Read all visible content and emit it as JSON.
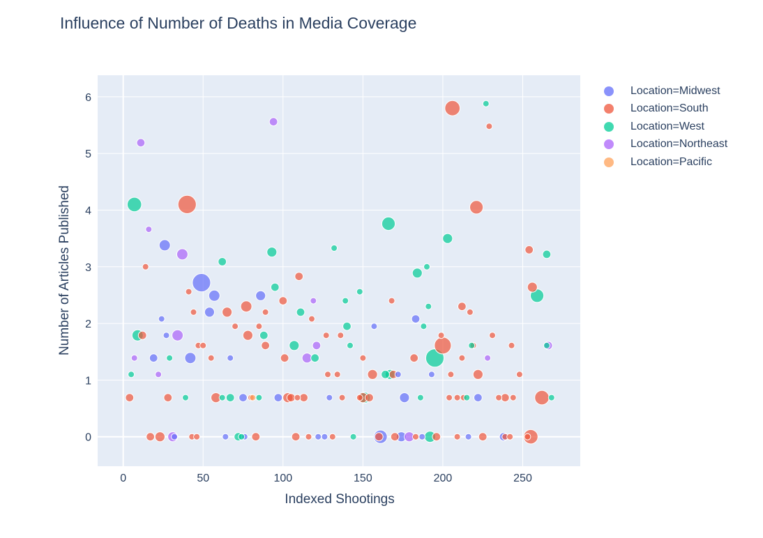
{
  "chart_data": {
    "type": "scatter",
    "title": "Influence of Number of Deaths in Media Coverage",
    "xlabel": "Indexed Shootings",
    "ylabel": "Number of Articles Published",
    "xlim": [
      -16,
      286
    ],
    "ylim": [
      -0.52,
      6.38
    ],
    "xticks": [
      0,
      50,
      100,
      150,
      200,
      250
    ],
    "yticks": [
      0,
      1,
      2,
      3,
      4,
      5,
      6
    ],
    "grid": true,
    "legend_position": "top-right",
    "note": "Marker size encodes a per-shooting count (bubble chart); points estimated visually.",
    "series": [
      {
        "name": "Location=Midwest",
        "color": "#636efa",
        "points": [
          {
            "x": 26,
            "y": 3.38,
            "s": 4
          },
          {
            "x": 49,
            "y": 2.72,
            "s": 12
          },
          {
            "x": 57,
            "y": 2.49,
            "s": 4
          },
          {
            "x": 86,
            "y": 2.49,
            "s": 3
          },
          {
            "x": 54,
            "y": 2.2,
            "s": 3
          },
          {
            "x": 24,
            "y": 2.08,
            "s": 1
          },
          {
            "x": 42,
            "y": 1.39,
            "s": 4
          },
          {
            "x": 19,
            "y": 1.39,
            "s": 2
          },
          {
            "x": 27,
            "y": 1.79,
            "s": 1
          },
          {
            "x": 67,
            "y": 1.39,
            "s": 1
          },
          {
            "x": 157,
            "y": 1.95,
            "s": 1
          },
          {
            "x": 183,
            "y": 2.08,
            "s": 2
          },
          {
            "x": 172,
            "y": 1.1,
            "s": 1
          },
          {
            "x": 193,
            "y": 1.1,
            "s": 1
          },
          {
            "x": 75,
            "y": 0.69,
            "s": 2
          },
          {
            "x": 97,
            "y": 0.69,
            "s": 2
          },
          {
            "x": 176,
            "y": 0.69,
            "s": 3
          },
          {
            "x": 129,
            "y": 0.69,
            "s": 1
          },
          {
            "x": 222,
            "y": 0.69,
            "s": 2
          },
          {
            "x": 161,
            "y": 0,
            "s": 6
          },
          {
            "x": 174,
            "y": 0,
            "s": 3
          },
          {
            "x": 187,
            "y": 0,
            "s": 1
          },
          {
            "x": 122,
            "y": 0,
            "s": 1
          },
          {
            "x": 126,
            "y": 0,
            "s": 1
          },
          {
            "x": 64,
            "y": 0,
            "s": 1
          },
          {
            "x": 76,
            "y": 0,
            "s": 1
          },
          {
            "x": 216,
            "y": 0,
            "s": 1
          },
          {
            "x": 238,
            "y": 0,
            "s": 2
          },
          {
            "x": 32,
            "y": 0,
            "s": 1
          }
        ]
      },
      {
        "name": "Location=South",
        "color": "#ef553b",
        "points": [
          {
            "x": 206,
            "y": 5.8,
            "s": 8
          },
          {
            "x": 229,
            "y": 5.48,
            "s": 1
          },
          {
            "x": 40,
            "y": 4.1,
            "s": 12
          },
          {
            "x": 221,
            "y": 4.05,
            "s": 6
          },
          {
            "x": 14,
            "y": 3.0,
            "s": 1
          },
          {
            "x": 254,
            "y": 3.3,
            "s": 2
          },
          {
            "x": 256,
            "y": 2.64,
            "s": 3
          },
          {
            "x": 110,
            "y": 2.83,
            "s": 2
          },
          {
            "x": 41,
            "y": 2.56,
            "s": 1
          },
          {
            "x": 100,
            "y": 2.4,
            "s": 2
          },
          {
            "x": 168,
            "y": 2.4,
            "s": 1
          },
          {
            "x": 77,
            "y": 2.3,
            "s": 4
          },
          {
            "x": 65,
            "y": 2.2,
            "s": 3
          },
          {
            "x": 44,
            "y": 2.2,
            "s": 1
          },
          {
            "x": 89,
            "y": 2.2,
            "s": 1
          },
          {
            "x": 118,
            "y": 2.08,
            "s": 1
          },
          {
            "x": 212,
            "y": 2.3,
            "s": 2
          },
          {
            "x": 217,
            "y": 2.2,
            "s": 1
          },
          {
            "x": 70,
            "y": 1.95,
            "s": 1
          },
          {
            "x": 85,
            "y": 1.95,
            "s": 1
          },
          {
            "x": 12,
            "y": 1.79,
            "s": 2
          },
          {
            "x": 78,
            "y": 1.79,
            "s": 3
          },
          {
            "x": 127,
            "y": 1.79,
            "s": 1
          },
          {
            "x": 136,
            "y": 1.79,
            "s": 1
          },
          {
            "x": 199,
            "y": 1.79,
            "s": 1
          },
          {
            "x": 231,
            "y": 1.79,
            "s": 1
          },
          {
            "x": 200,
            "y": 1.61,
            "s": 10
          },
          {
            "x": 47,
            "y": 1.61,
            "s": 1
          },
          {
            "x": 50,
            "y": 1.61,
            "s": 1
          },
          {
            "x": 89,
            "y": 1.61,
            "s": 2
          },
          {
            "x": 219,
            "y": 1.61,
            "s": 1
          },
          {
            "x": 243,
            "y": 1.61,
            "s": 1
          },
          {
            "x": 101,
            "y": 1.39,
            "s": 2
          },
          {
            "x": 55,
            "y": 1.39,
            "s": 1
          },
          {
            "x": 150,
            "y": 1.39,
            "s": 1
          },
          {
            "x": 182,
            "y": 1.39,
            "s": 2
          },
          {
            "x": 212,
            "y": 1.39,
            "s": 1
          },
          {
            "x": 128,
            "y": 1.1,
            "s": 1
          },
          {
            "x": 134,
            "y": 1.1,
            "s": 1
          },
          {
            "x": 156,
            "y": 1.1,
            "s": 3
          },
          {
            "x": 169,
            "y": 1.1,
            "s": 2
          },
          {
            "x": 205,
            "y": 1.1,
            "s": 1
          },
          {
            "x": 222,
            "y": 1.1,
            "s": 3
          },
          {
            "x": 248,
            "y": 1.1,
            "s": 1
          },
          {
            "x": 4,
            "y": 0.69,
            "s": 2
          },
          {
            "x": 28,
            "y": 0.69,
            "s": 2
          },
          {
            "x": 58,
            "y": 0.69,
            "s": 3
          },
          {
            "x": 80,
            "y": 0.69,
            "s": 1
          },
          {
            "x": 103,
            "y": 0.69,
            "s": 3
          },
          {
            "x": 105,
            "y": 0.69,
            "s": 2
          },
          {
            "x": 109,
            "y": 0.69,
            "s": 1
          },
          {
            "x": 113,
            "y": 0.69,
            "s": 2
          },
          {
            "x": 137,
            "y": 0.69,
            "s": 1
          },
          {
            "x": 148,
            "y": 0.69,
            "s": 1
          },
          {
            "x": 150,
            "y": 0.69,
            "s": 3
          },
          {
            "x": 154,
            "y": 0.69,
            "s": 2
          },
          {
            "x": 204,
            "y": 0.69,
            "s": 1
          },
          {
            "x": 209,
            "y": 0.69,
            "s": 1
          },
          {
            "x": 213,
            "y": 0.69,
            "s": 1
          },
          {
            "x": 235,
            "y": 0.69,
            "s": 1
          },
          {
            "x": 239,
            "y": 0.69,
            "s": 2
          },
          {
            "x": 244,
            "y": 0.69,
            "s": 1
          },
          {
            "x": 262,
            "y": 0.69,
            "s": 7
          },
          {
            "x": 17,
            "y": 0,
            "s": 2
          },
          {
            "x": 23,
            "y": 0,
            "s": 3
          },
          {
            "x": 43,
            "y": 0,
            "s": 1
          },
          {
            "x": 46,
            "y": 0,
            "s": 1
          },
          {
            "x": 83,
            "y": 0,
            "s": 2
          },
          {
            "x": 108,
            "y": 0,
            "s": 2
          },
          {
            "x": 116,
            "y": 0,
            "s": 1
          },
          {
            "x": 131,
            "y": 0,
            "s": 1
          },
          {
            "x": 160,
            "y": 0,
            "s": 2
          },
          {
            "x": 170,
            "y": 0,
            "s": 2
          },
          {
            "x": 183,
            "y": 0,
            "s": 1
          },
          {
            "x": 196,
            "y": 0,
            "s": 2
          },
          {
            "x": 209,
            "y": 0,
            "s": 1
          },
          {
            "x": 225,
            "y": 0,
            "s": 2
          },
          {
            "x": 239,
            "y": 0,
            "s": 1
          },
          {
            "x": 242,
            "y": 0,
            "s": 1
          },
          {
            "x": 253,
            "y": 0,
            "s": 1
          },
          {
            "x": 255,
            "y": 0,
            "s": 7
          }
        ]
      },
      {
        "name": "Location=West",
        "color": "#00cc96",
        "points": [
          {
            "x": 227,
            "y": 5.88,
            "s": 1
          },
          {
            "x": 7,
            "y": 4.1,
            "s": 7
          },
          {
            "x": 166,
            "y": 3.76,
            "s": 6
          },
          {
            "x": 203,
            "y": 3.5,
            "s": 3
          },
          {
            "x": 132,
            "y": 3.33,
            "s": 1
          },
          {
            "x": 93,
            "y": 3.26,
            "s": 3
          },
          {
            "x": 265,
            "y": 3.22,
            "s": 2
          },
          {
            "x": 62,
            "y": 3.09,
            "s": 2
          },
          {
            "x": 190,
            "y": 3.0,
            "s": 1
          },
          {
            "x": 184,
            "y": 2.89,
            "s": 3
          },
          {
            "x": 95,
            "y": 2.64,
            "s": 2
          },
          {
            "x": 148,
            "y": 2.56,
            "s": 1
          },
          {
            "x": 259,
            "y": 2.49,
            "s": 6
          },
          {
            "x": 139,
            "y": 2.4,
            "s": 1
          },
          {
            "x": 191,
            "y": 2.3,
            "s": 1
          },
          {
            "x": 111,
            "y": 2.2,
            "s": 2
          },
          {
            "x": 140,
            "y": 1.95,
            "s": 2
          },
          {
            "x": 188,
            "y": 1.95,
            "s": 1
          },
          {
            "x": 9,
            "y": 1.79,
            "s": 4
          },
          {
            "x": 88,
            "y": 1.79,
            "s": 2
          },
          {
            "x": 107,
            "y": 1.61,
            "s": 3
          },
          {
            "x": 142,
            "y": 1.61,
            "s": 1
          },
          {
            "x": 218,
            "y": 1.61,
            "s": 1
          },
          {
            "x": 265,
            "y": 1.61,
            "s": 1
          },
          {
            "x": 29,
            "y": 1.39,
            "s": 1
          },
          {
            "x": 120,
            "y": 1.39,
            "s": 2
          },
          {
            "x": 195,
            "y": 1.39,
            "s": 12
          },
          {
            "x": 5,
            "y": 1.1,
            "s": 1
          },
          {
            "x": 164,
            "y": 1.1,
            "s": 2
          },
          {
            "x": 167,
            "y": 1.1,
            "s": 3
          },
          {
            "x": 39,
            "y": 0.69,
            "s": 1
          },
          {
            "x": 62,
            "y": 0.69,
            "s": 1
          },
          {
            "x": 67,
            "y": 0.69,
            "s": 2
          },
          {
            "x": 85,
            "y": 0.69,
            "s": 1
          },
          {
            "x": 151,
            "y": 0.69,
            "s": 4
          },
          {
            "x": 186,
            "y": 0.69,
            "s": 1
          },
          {
            "x": 215,
            "y": 0.69,
            "s": 1
          },
          {
            "x": 268,
            "y": 0.69,
            "s": 1
          },
          {
            "x": 72,
            "y": 0,
            "s": 2
          },
          {
            "x": 74,
            "y": 0,
            "s": 1
          },
          {
            "x": 144,
            "y": 0,
            "s": 1
          },
          {
            "x": 192,
            "y": 0,
            "s": 4
          }
        ]
      },
      {
        "name": "Location=Northeast",
        "color": "#ab63fa",
        "points": [
          {
            "x": 94,
            "y": 5.56,
            "s": 2
          },
          {
            "x": 11,
            "y": 5.19,
            "s": 2
          },
          {
            "x": 16,
            "y": 3.66,
            "s": 1
          },
          {
            "x": 37,
            "y": 3.22,
            "s": 4
          },
          {
            "x": 119,
            "y": 2.4,
            "s": 1
          },
          {
            "x": 34,
            "y": 1.79,
            "s": 4
          },
          {
            "x": 266,
            "y": 1.61,
            "s": 2
          },
          {
            "x": 121,
            "y": 1.61,
            "s": 2
          },
          {
            "x": 7,
            "y": 1.39,
            "s": 1
          },
          {
            "x": 115,
            "y": 1.39,
            "s": 3
          },
          {
            "x": 228,
            "y": 1.39,
            "s": 1
          },
          {
            "x": 22,
            "y": 1.1,
            "s": 1
          },
          {
            "x": 31,
            "y": 0,
            "s": 3
          },
          {
            "x": 179,
            "y": 0,
            "s": 3
          }
        ]
      },
      {
        "name": "Location=Pacific",
        "color": "#ffa15a",
        "points": [
          {
            "x": 81,
            "y": 0.69,
            "s": 1
          }
        ]
      }
    ]
  }
}
